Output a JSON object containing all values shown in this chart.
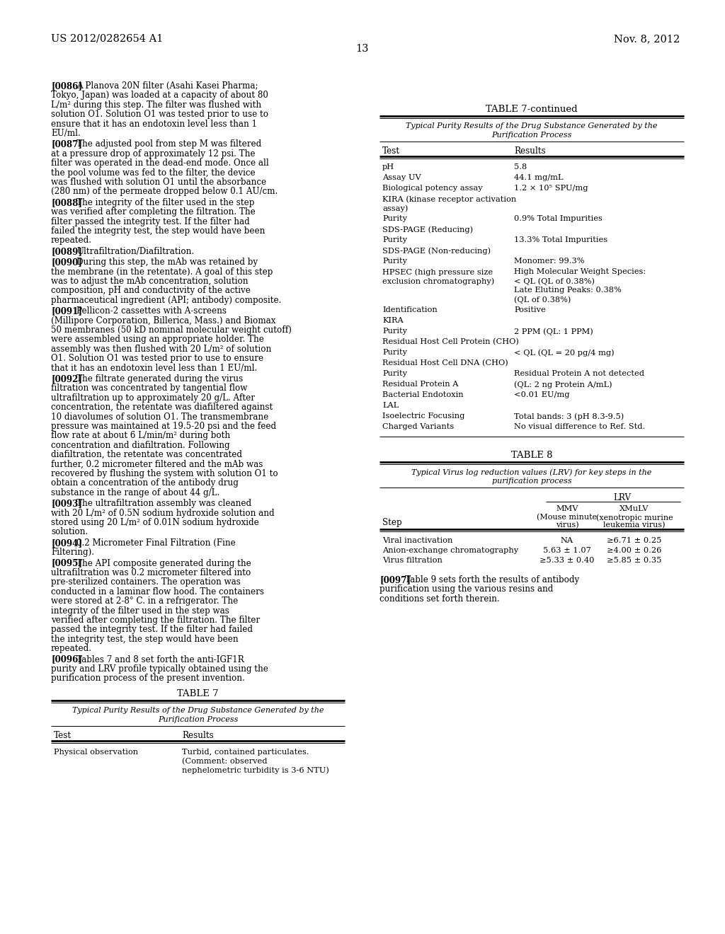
{
  "page_num": "13",
  "patent_left": "US 2012/0282654 A1",
  "patent_right": "Nov. 8, 2012",
  "background": "#ffffff",
  "left_paragraphs": [
    {
      "tag": "[0086]",
      "text": "A Planova 20N filter (Asahi Kasei Pharma; Tokyo, Japan) was loaded at a capacity of about 80 L/m² during this step. The filter was flushed with solution O1. Solution O1 was tested prior to use to ensure that it has an endotoxin level less than 1 EU/ml."
    },
    {
      "tag": "[0087]",
      "text": "The adjusted pool from step M was filtered at a pressure drop of approximately 12 psi. The filter was operated in the dead-end mode. Once all the pool volume was fed to the filter, the device was flushed with solution O1 until the absorbance (280 nm) of the permeate dropped below 0.1 AU/cm."
    },
    {
      "tag": "[0088]",
      "text": "The integrity of the filter used in the step was verified after completing the filtration. The filter passed the integrity test. If the filter had failed the integrity test, the step would have been repeated."
    },
    {
      "tag": "[0089]",
      "text": "Ultrafiltration/Diafiltration."
    },
    {
      "tag": "[0090]",
      "text": "During this step, the mAb was retained by the membrane (in the retentate). A goal of this step was to adjust the mAb concentration, solution composition, pH and conductivity of the active pharmaceutical ingredient (API; antibody) composite."
    },
    {
      "tag": "[0091]",
      "text": "Pellicon-2 cassettes with A-screens (Millipore Corporation, Billerica, Mass.) and Biomax 50 membranes (50 kD nominal molecular weight cutoff) were assembled using an appropriate holder. The assembly was then flushed with 20 L/m² of solution O1. Solution O1 was tested prior to use to ensure that it has an endotoxin level less than 1 EU/ml."
    },
    {
      "tag": "[0092]",
      "text": "The filtrate generated during the virus filtration was concentrated by tangential flow ultrafiltration up to approximately 20 g/L. After concentration, the retentate was diafiltered against 10 diavolumes of solution O1. The transmembrane pressure was maintained at 19.5-20 psi and the feed flow rate at about 6 L/min/m² during both concentration and diafiltration. Following diafiltration, the retentate was concentrated further, 0.2 micrometer filtered and the mAb was recovered by flushing the system with solution O1 to obtain a concentration of the antibody drug substance in the range of about 44 g/L."
    },
    {
      "tag": "[0093]",
      "text": "The ultrafiltration assembly was cleaned with 20 L/m² of 0.5N sodium hydroxide solution and stored using 20 L/m² of 0.01N sodium hydroxide solution."
    },
    {
      "tag": "[0094]",
      "text": "0.2 Micrometer Final Filtration (Fine Filtering)."
    },
    {
      "tag": "[0095]",
      "text": "The API composite generated during the ultrafiltration was 0.2 micrometer filtered into pre-sterilized containers. The operation was conducted in a laminar flow hood. The containers were stored at 2-8° C. in a refrigerator. The integrity of the filter used in the step was verified after completing the filtration. The filter passed the integrity test. If the filter had failed the integrity test, the step would have been repeated."
    },
    {
      "tag": "[0096]",
      "text": "Tables 7 and 8 set forth the anti-IGF1R purity and LRV profile typically obtained using the purification process of the present invention."
    }
  ],
  "table7": {
    "title": "TABLE 7",
    "subtitle1": "Typical Purity Results of the Drug Substance Generated by the",
    "subtitle2": "Purification Process",
    "col1": "Test",
    "col2": "Results",
    "rows": [
      [
        "Physical observation",
        "Turbid, contained particulates.",
        "(Comment: observed",
        "nephelometric turbidity is 3-6 NTU)"
      ]
    ]
  },
  "table7cont": {
    "title": "TABLE 7-continued",
    "subtitle1": "Typical Purity Results of the Drug Substance Generated by the",
    "subtitle2": "Purification Process",
    "col1": "Test",
    "col2": "Results",
    "rows": [
      {
        "c1": [
          "pH"
        ],
        "c2": [
          "5.8"
        ]
      },
      {
        "c1": [
          "Assay UV"
        ],
        "c2": [
          "44.1 mg/mL"
        ]
      },
      {
        "c1": [
          "Biological potency assay"
        ],
        "c2": [
          "1.2 × 10⁵ SPU/mg"
        ]
      },
      {
        "c1": [
          "KIRA (kinase receptor activation",
          "assay)"
        ],
        "c2": [
          ""
        ]
      },
      {
        "c1": [
          "Purity"
        ],
        "c2": [
          "0.9% Total Impurities"
        ]
      },
      {
        "c1": [
          "SDS-PAGE (Reducing)"
        ],
        "c2": [
          ""
        ]
      },
      {
        "c1": [
          "Purity"
        ],
        "c2": [
          "13.3% Total Impurities"
        ]
      },
      {
        "c1": [
          "SDS-PAGE (Non-reducing)"
        ],
        "c2": [
          ""
        ]
      },
      {
        "c1": [
          "Purity"
        ],
        "c2": [
          "Monomer: 99.3%"
        ]
      },
      {
        "c1": [
          "HPSEC (high pressure size",
          "exclusion chromatography)"
        ],
        "c2": [
          "High Molecular Weight Species:",
          "< QL (QL of 0.38%)",
          "Late Eluting Peaks: 0.38%",
          "(QL of 0.38%)"
        ]
      },
      {
        "c1": [
          "Identification"
        ],
        "c2": [
          "Positive"
        ]
      },
      {
        "c1": [
          "KIRA"
        ],
        "c2": [
          ""
        ]
      },
      {
        "c1": [
          "Purity"
        ],
        "c2": [
          "2 PPM (QL: 1 PPM)"
        ]
      },
      {
        "c1": [
          "Residual Host Cell Protein (CHO)"
        ],
        "c2": [
          ""
        ]
      },
      {
        "c1": [
          "Purity"
        ],
        "c2": [
          "< QL (QL = 20 pg/4 mg)"
        ]
      },
      {
        "c1": [
          "Residual Host Cell DNA (CHO)"
        ],
        "c2": [
          ""
        ]
      },
      {
        "c1": [
          "Purity"
        ],
        "c2": [
          "Residual Protein A not detected"
        ]
      },
      {
        "c1": [
          "Residual Protein A"
        ],
        "c2": [
          "(QL: 2 ng Protein A/mL)"
        ]
      },
      {
        "c1": [
          "Bacterial Endotoxin"
        ],
        "c2": [
          "<0.01 EU/mg"
        ]
      },
      {
        "c1": [
          "LAL"
        ],
        "c2": [
          ""
        ]
      },
      {
        "c1": [
          "Isoelectric Focusing"
        ],
        "c2": [
          "Total bands: 3 (pH 8.3-9.5)"
        ]
      },
      {
        "c1": [
          "Charged Variants"
        ],
        "c2": [
          "No visual difference to Ref. Std."
        ]
      }
    ]
  },
  "table8": {
    "title": "TABLE 8",
    "subtitle1": "Typical Virus log reduction values (LRV) for key steps in the",
    "subtitle2": "purification process",
    "lrv_header": "LRV",
    "col_step": "Step",
    "col_mmv": "MMV",
    "col_mmv_sub1": "(Mouse minute",
    "col_mmv_sub2": "virus)",
    "col_xmulv": "XMuLV",
    "col_xmulv_sub1": "(xenotropic murine",
    "col_xmulv_sub2": "leukemia virus)",
    "rows": [
      [
        "Viral inactivation",
        "NA",
        "≥6.71 ± 0.25"
      ],
      [
        "Anion-exchange chromatography",
        "5.63 ± 1.07",
        "≥4.00 ± 0.26"
      ],
      [
        "Virus filtration",
        "≥5.33 ± 0.40",
        "≥5.85 ± 0.35"
      ]
    ]
  },
  "last_para": {
    "tag": "[0097]",
    "text": "Table 9 sets forth the results of antibody purification using the various resins and conditions set forth therein."
  }
}
